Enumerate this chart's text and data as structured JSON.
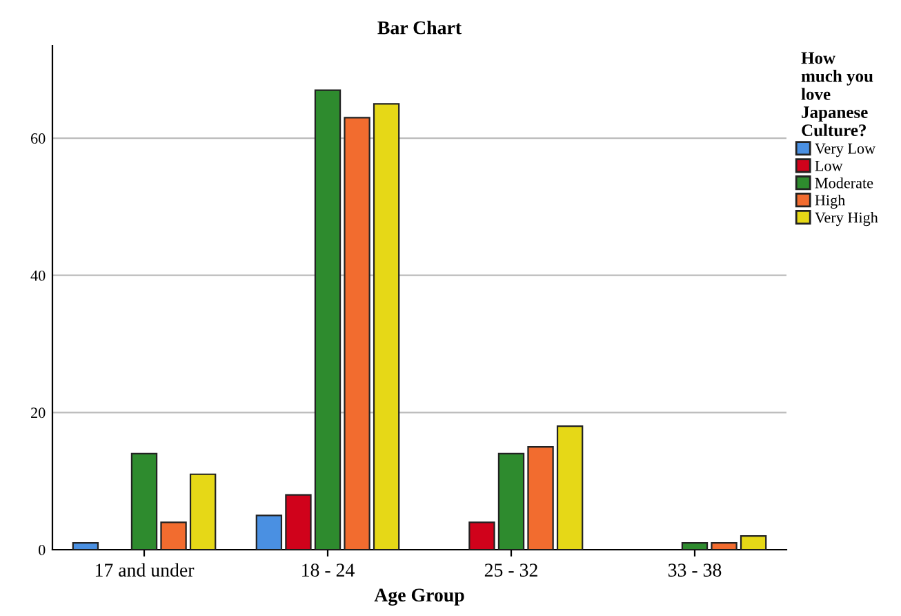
{
  "chart_data": {
    "type": "bar",
    "title": "Bar Chart",
    "xlabel": "Age Group",
    "legend_title": "How\nmuch you\nlove\nJapanese\nCulture?",
    "categories": [
      "17 and under",
      "18 - 24",
      "25 - 32",
      "33 - 38"
    ],
    "series": [
      {
        "name": "Very Low",
        "color": "#4a90e2",
        "values": [
          1,
          5,
          null,
          null
        ]
      },
      {
        "name": "Low",
        "color": "#d0021b",
        "values": [
          null,
          8,
          4,
          null
        ]
      },
      {
        "name": "Moderate",
        "color": "#2e8b2e",
        "values": [
          14,
          67,
          14,
          1
        ]
      },
      {
        "name": "High",
        "color": "#f26c2f",
        "values": [
          4,
          63,
          15,
          1
        ]
      },
      {
        "name": "Very High",
        "color": "#e6d817",
        "values": [
          11,
          65,
          18,
          2
        ]
      }
    ],
    "ylim": [
      0,
      73.5
    ],
    "yticks": [
      0,
      20,
      40,
      60
    ],
    "grid": "y",
    "legend": "right"
  }
}
